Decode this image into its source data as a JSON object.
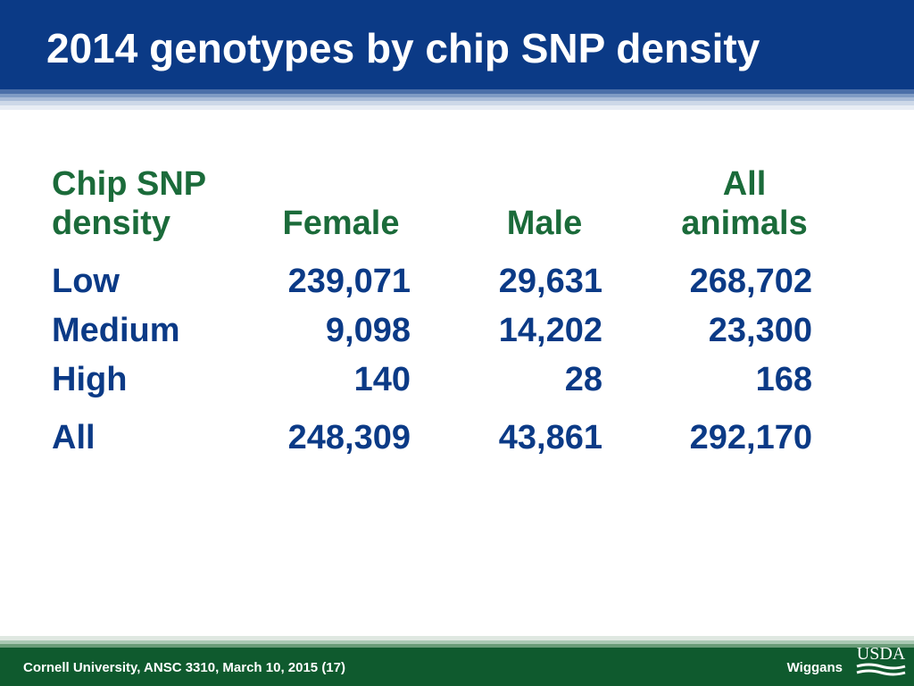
{
  "slide": {
    "title": "2014 genotypes by chip SNP density"
  },
  "table": {
    "headers": {
      "col0_line1": "Chip SNP",
      "col0_line2": "density",
      "col1": "Female",
      "col2": "Male",
      "col3_line1": "All",
      "col3_line2": "animals"
    },
    "rows": [
      {
        "label": "Low",
        "female": "239,071",
        "male": "29,631",
        "all": "268,702"
      },
      {
        "label": "Medium",
        "female": "9,098",
        "male": "14,202",
        "all": "23,300"
      },
      {
        "label": "High",
        "female": "140",
        "male": "28",
        "all": "168"
      }
    ],
    "total": {
      "label": "All",
      "female": "248,309",
      "male": "43,861",
      "all": "292,170"
    }
  },
  "footer": {
    "left": "Cornell University, ANSC 3310, March 10, 2015 (17)",
    "right": "Wiggans",
    "logo_text": "USDA"
  },
  "colors": {
    "header_blue": "#0b3a86",
    "header_text_green": "#1b6b3a",
    "footer_green": "#0f5a2e"
  }
}
